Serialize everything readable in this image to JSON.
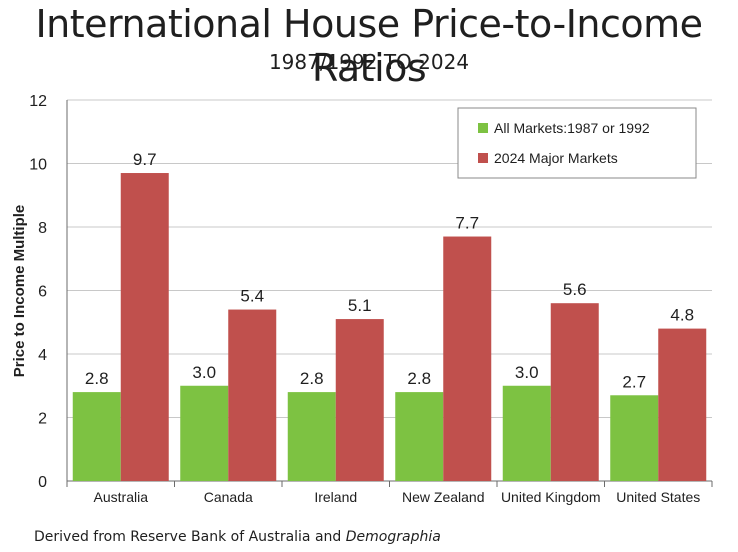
{
  "header": {
    "title": "International House Price-to-Income Ratios",
    "subtitle": "1987/1992 TO 2024"
  },
  "footer": {
    "source_prefix": "Derived from Reserve Bank of Australia and ",
    "source_italic": "Demographia"
  },
  "colors": {
    "series1": "#7dc242",
    "series2": "#c0504d",
    "grid": "#c8c8c8"
  },
  "chart_data": {
    "type": "bar",
    "title": "International House Price-to-Income Ratios",
    "subtitle": "1987/1992 TO 2024",
    "xlabel": "",
    "ylabel": "Price to Income Multiple",
    "ylim": [
      0,
      12
    ],
    "yticks": [
      0,
      2,
      4,
      6,
      8,
      10,
      12
    ],
    "grid": true,
    "legend_position": "top-right",
    "categories": [
      "Australia",
      "Canada",
      "Ireland",
      "New Zealand",
      "United Kingdom",
      "United States"
    ],
    "series": [
      {
        "name": "All Markets:1987 or 1992",
        "values": [
          2.8,
          3.0,
          2.8,
          2.8,
          3.0,
          2.7
        ],
        "labels": [
          "2.8",
          "3.0",
          "2.8",
          "2.8",
          "3.0",
          "2.7"
        ]
      },
      {
        "name": "2024 Major Markets",
        "values": [
          9.7,
          5.4,
          5.1,
          7.7,
          5.6,
          4.8
        ],
        "labels": [
          "9.7",
          "5.4",
          "5.1",
          "7.7",
          "5.6",
          "4.8"
        ]
      }
    ]
  }
}
